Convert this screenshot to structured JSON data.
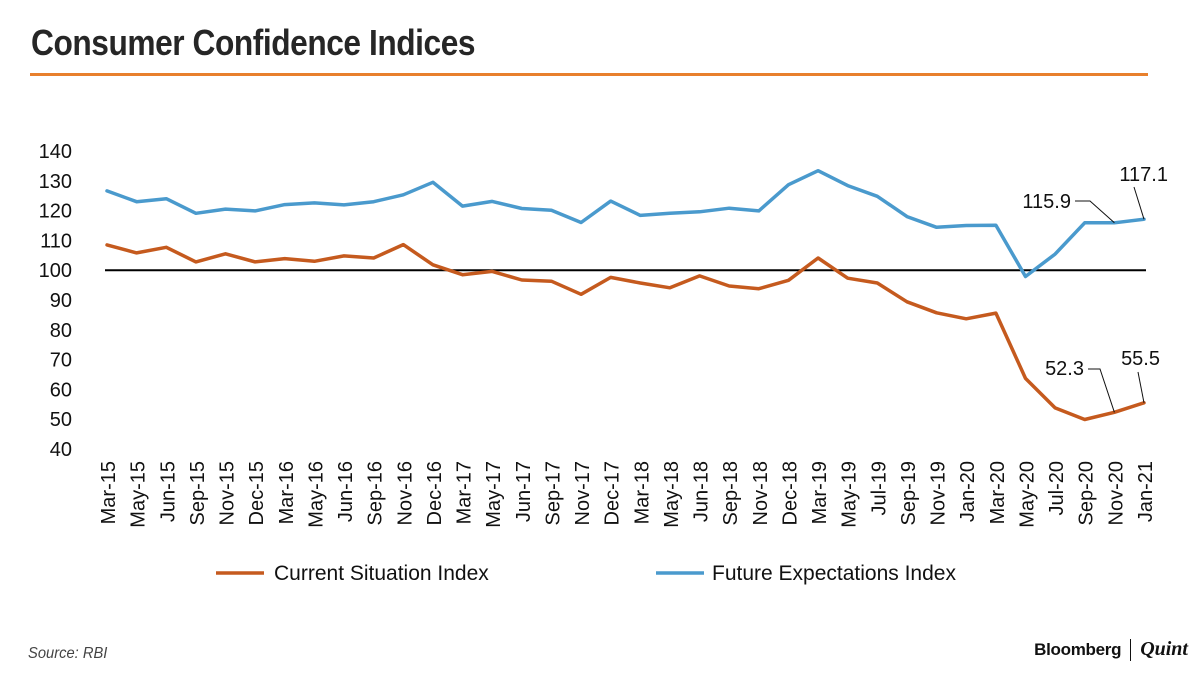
{
  "header": {
    "title": "Consumer Confidence Indices"
  },
  "footer": {
    "source": "Source: RBI",
    "brand_primary": "Bloomberg",
    "brand_secondary": "Quint"
  },
  "colors": {
    "accent": "#E8802D",
    "current_series": "#C55A1E",
    "future_series": "#4A9ACD",
    "reference_line": "#000000"
  },
  "chart_data": {
    "type": "line",
    "title": "Consumer Confidence Indices",
    "xlabel": "",
    "ylabel": "",
    "ylim": [
      40,
      140
    ],
    "yticks": [
      40,
      50,
      60,
      70,
      80,
      90,
      100,
      110,
      120,
      130,
      140
    ],
    "reference_line": 100,
    "grid": false,
    "legend_position": "bottom",
    "categories": [
      "Mar-15",
      "May-15",
      "Jun-15",
      "Sep-15",
      "Nov-15",
      "Dec-15",
      "Mar-16",
      "May-16",
      "Jun-16",
      "Sep-16",
      "Nov-16",
      "Dec-16",
      "Mar-17",
      "May-17",
      "Jun-17",
      "Sep-17",
      "Nov-17",
      "Dec-17",
      "Mar-18",
      "May-18",
      "Jun-18",
      "Sep-18",
      "Nov-18",
      "Dec-18",
      "Mar-19",
      "May-19",
      "Jul-19",
      "Sep-19",
      "Nov-19",
      "Jan-20",
      "Mar-20",
      "May-20",
      "Jul-20",
      "Sep-20",
      "Nov-20",
      "Jan-21"
    ],
    "series": [
      {
        "name": "Current Situation Index",
        "color": "#C55A1E",
        "values": [
          108.5,
          105.8,
          107.7,
          102.8,
          105.5,
          102.8,
          103.9,
          103.0,
          104.8,
          104.1,
          108.6,
          101.8,
          98.5,
          99.6,
          96.7,
          96.3,
          91.9,
          97.6,
          95.7,
          94.1,
          98.1,
          94.7,
          93.8,
          96.6,
          104.1,
          97.3,
          95.7,
          89.4,
          85.7,
          83.7,
          85.6,
          63.7,
          53.8,
          49.9,
          52.3,
          55.5
        ]
      },
      {
        "name": "Future Expectations Index",
        "color": "#4A9ACD",
        "values": [
          126.6,
          123.0,
          124.0,
          119.1,
          120.5,
          119.9,
          122.0,
          122.6,
          121.9,
          123.0,
          125.3,
          129.5,
          121.5,
          123.1,
          120.7,
          120.1,
          116.0,
          123.2,
          118.4,
          119.1,
          119.6,
          120.8,
          119.9,
          128.7,
          133.4,
          128.4,
          124.8,
          118.0,
          114.4,
          115.0,
          115.1,
          97.9,
          105.4,
          115.9,
          115.9,
          117.1
        ]
      }
    ],
    "annotations": [
      {
        "series": 0,
        "label": "52.3",
        "index": 34
      },
      {
        "series": 0,
        "label": "55.5",
        "index": 35
      },
      {
        "series": 1,
        "label": "115.9",
        "index": 34
      },
      {
        "series": 1,
        "label": "117.1",
        "index": 35
      }
    ]
  }
}
